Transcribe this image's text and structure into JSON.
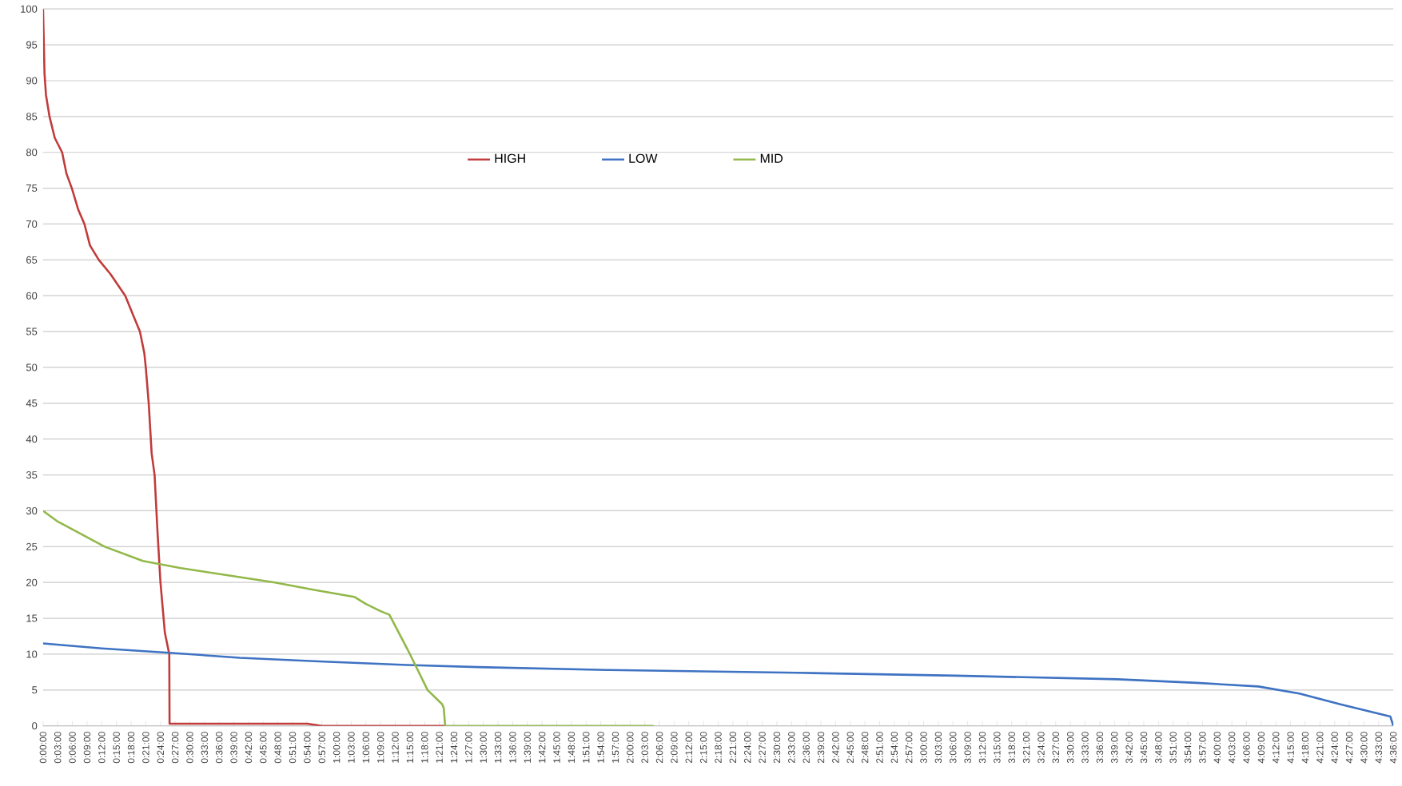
{
  "chart_data": {
    "type": "line",
    "xlim": [
      0,
      4.6
    ],
    "ylim": [
      0,
      100
    ],
    "yticks": [
      0,
      5,
      10,
      15,
      20,
      25,
      30,
      35,
      40,
      45,
      50,
      55,
      60,
      65,
      70,
      75,
      80,
      85,
      90,
      95,
      100
    ],
    "xticks": [
      {
        "value": 0,
        "label": "0:00:00"
      },
      {
        "value": 0.05,
        "label": "0:03:00"
      },
      {
        "value": 0.1,
        "label": "0:06:00"
      },
      {
        "value": 0.15,
        "label": "0:09:00"
      },
      {
        "value": 0.2,
        "label": "0:12:00"
      },
      {
        "value": 0.25,
        "label": "0:15:00"
      },
      {
        "value": 0.3,
        "label": "0:18:00"
      },
      {
        "value": 0.35,
        "label": "0:21:00"
      },
      {
        "value": 0.4,
        "label": "0:24:00"
      },
      {
        "value": 0.45,
        "label": "0:27:00"
      },
      {
        "value": 0.5,
        "label": "0:30:00"
      },
      {
        "value": 0.55,
        "label": "0:33:00"
      },
      {
        "value": 0.6,
        "label": "0:36:00"
      },
      {
        "value": 0.65,
        "label": "0:39:00"
      },
      {
        "value": 0.7,
        "label": "0:42:00"
      },
      {
        "value": 0.75,
        "label": "0:45:00"
      },
      {
        "value": 0.8,
        "label": "0:48:00"
      },
      {
        "value": 0.85,
        "label": "0:51:00"
      },
      {
        "value": 0.9,
        "label": "0:54:00"
      },
      {
        "value": 0.95,
        "label": "0:57:00"
      },
      {
        "value": 1,
        "label": "1:00:00"
      },
      {
        "value": 1.05,
        "label": "1:03:00"
      },
      {
        "value": 1.1,
        "label": "1:06:00"
      },
      {
        "value": 1.15,
        "label": "1:09:00"
      },
      {
        "value": 1.2,
        "label": "1:12:00"
      },
      {
        "value": 1.25,
        "label": "1:15:00"
      },
      {
        "value": 1.3,
        "label": "1:18:00"
      },
      {
        "value": 1.35,
        "label": "1:21:00"
      },
      {
        "value": 1.4,
        "label": "1:24:00"
      },
      {
        "value": 1.45,
        "label": "1:27:00"
      },
      {
        "value": 1.5,
        "label": "1:30:00"
      },
      {
        "value": 1.55,
        "label": "1:33:00"
      },
      {
        "value": 1.6,
        "label": "1:36:00"
      },
      {
        "value": 1.65,
        "label": "1:39:00"
      },
      {
        "value": 1.7,
        "label": "1:42:00"
      },
      {
        "value": 1.75,
        "label": "1:45:00"
      },
      {
        "value": 1.8,
        "label": "1:48:00"
      },
      {
        "value": 1.85,
        "label": "1:51:00"
      },
      {
        "value": 1.9,
        "label": "1:54:00"
      },
      {
        "value": 1.95,
        "label": "1:57:00"
      },
      {
        "value": 2,
        "label": "2:00:00"
      },
      {
        "value": 2.05,
        "label": "2:03:00"
      },
      {
        "value": 2.1,
        "label": "2:06:00"
      },
      {
        "value": 2.15,
        "label": "2:09:00"
      },
      {
        "value": 2.2,
        "label": "2:12:00"
      },
      {
        "value": 2.25,
        "label": "2:15:00"
      },
      {
        "value": 2.3,
        "label": "2:18:00"
      },
      {
        "value": 2.35,
        "label": "2:21:00"
      },
      {
        "value": 2.4,
        "label": "2:24:00"
      },
      {
        "value": 2.45,
        "label": "2:27:00"
      },
      {
        "value": 2.5,
        "label": "2:30:00"
      },
      {
        "value": 2.55,
        "label": "2:33:00"
      },
      {
        "value": 2.6,
        "label": "2:36:00"
      },
      {
        "value": 2.65,
        "label": "2:39:00"
      },
      {
        "value": 2.7,
        "label": "2:42:00"
      },
      {
        "value": 2.75,
        "label": "2:45:00"
      },
      {
        "value": 2.8,
        "label": "2:48:00"
      },
      {
        "value": 2.85,
        "label": "2:51:00"
      },
      {
        "value": 2.9,
        "label": "2:54:00"
      },
      {
        "value": 2.95,
        "label": "2:57:00"
      },
      {
        "value": 3,
        "label": "3:00:00"
      },
      {
        "value": 3.05,
        "label": "3:03:00"
      },
      {
        "value": 3.1,
        "label": "3:06:00"
      },
      {
        "value": 3.15,
        "label": "3:09:00"
      },
      {
        "value": 3.2,
        "label": "3:12:00"
      },
      {
        "value": 3.25,
        "label": "3:15:00"
      },
      {
        "value": 3.3,
        "label": "3:18:00"
      },
      {
        "value": 3.35,
        "label": "3:21:00"
      },
      {
        "value": 3.4,
        "label": "3:24:00"
      },
      {
        "value": 3.45,
        "label": "3:27:00"
      },
      {
        "value": 3.5,
        "label": "3:30:00"
      },
      {
        "value": 3.55,
        "label": "3:33:00"
      },
      {
        "value": 3.6,
        "label": "3:36:00"
      },
      {
        "value": 3.65,
        "label": "3:39:00"
      },
      {
        "value": 3.7,
        "label": "3:42:00"
      },
      {
        "value": 3.75,
        "label": "3:45:00"
      },
      {
        "value": 3.8,
        "label": "3:48:00"
      },
      {
        "value": 3.85,
        "label": "3:51:00"
      },
      {
        "value": 3.9,
        "label": "3:54:00"
      },
      {
        "value": 3.95,
        "label": "3:57:00"
      },
      {
        "value": 4,
        "label": "4:00:00"
      },
      {
        "value": 4.05,
        "label": "4:03:00"
      },
      {
        "value": 4.1,
        "label": "4:06:00"
      },
      {
        "value": 4.15,
        "label": "4:09:00"
      },
      {
        "value": 4.2,
        "label": "4:12:00"
      },
      {
        "value": 4.25,
        "label": "4:15:00"
      },
      {
        "value": 4.3,
        "label": "4:18:00"
      },
      {
        "value": 4.35,
        "label": "4:21:00"
      },
      {
        "value": 4.4,
        "label": "4:24:00"
      },
      {
        "value": 4.45,
        "label": "4:27:00"
      },
      {
        "value": 4.5,
        "label": "4:30:00"
      },
      {
        "value": 4.55,
        "label": "4:33:00"
      },
      {
        "value": 4.6,
        "label": "4:36:00"
      }
    ],
    "grid": "y",
    "legend": "top",
    "marker": "none",
    "line_style": "solid",
    "series": [
      {
        "name": "HIGH",
        "color": "#c23b3b",
        "x": [
          0,
          0.005,
          0.01,
          0.022,
          0.04,
          0.065,
          0.08,
          0.098,
          0.12,
          0.141,
          0.16,
          0.19,
          0.23,
          0.28,
          0.31,
          0.33,
          0.345,
          0.35,
          0.36,
          0.37,
          0.38,
          0.39,
          0.4,
          0.415,
          0.42,
          0.43,
          0.431,
          0.9,
          0.95,
          1.37
        ],
        "values": [
          100,
          91,
          88,
          85,
          82,
          80,
          77,
          75,
          72,
          70,
          67,
          65,
          63,
          60,
          57,
          55,
          52,
          50,
          45,
          38,
          35,
          27,
          20,
          13,
          12,
          10,
          0.3,
          0.3,
          0,
          0
        ]
      },
      {
        "name": "LOW",
        "color": "#3e72c2",
        "x": [
          0,
          0.2,
          0.43,
          0.67,
          0.94,
          1.24,
          1.48,
          1.92,
          2.57,
          3.11,
          3.66,
          3.93,
          4.14,
          4.28,
          4.42,
          4.52,
          4.59,
          4.6
        ],
        "values": [
          11.5,
          10.8,
          10.2,
          9.5,
          9,
          8.5,
          8.2,
          7.8,
          7.4,
          7,
          6.5,
          6,
          5.5,
          4.5,
          3,
          2,
          1.3,
          0
        ]
      },
      {
        "name": "MID",
        "color": "#92b84a",
        "x": [
          0,
          0.05,
          0.21,
          0.34,
          0.47,
          0.63,
          0.79,
          0.92,
          1.06,
          1.1,
          1.15,
          1.18,
          1.25,
          1.31,
          1.36,
          1.365,
          1.37,
          2.08
        ],
        "values": [
          30,
          28.5,
          25,
          23,
          22,
          21,
          20,
          19,
          18,
          17,
          16,
          15.5,
          10,
          5,
          3,
          2.5,
          0,
          0
        ]
      }
    ]
  }
}
